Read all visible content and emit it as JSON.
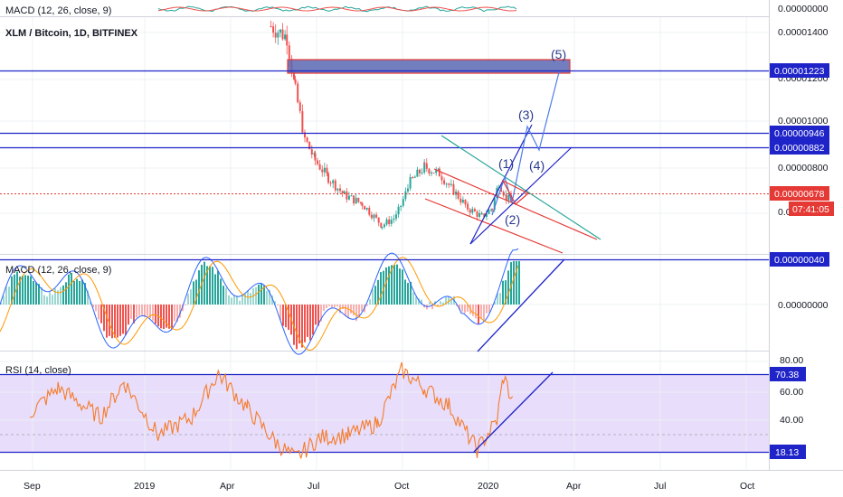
{
  "colors": {
    "blue_line": "#1f24c8",
    "red_line": "#e53935",
    "green_line": "#26a69a",
    "up_candle": "#26a69a",
    "down_candle": "#ef5350",
    "rsi_line": "#f57c2c",
    "rsi_band": "#e8ddfb",
    "zone_fill": "#5b67b3",
    "zone_border": "#e53935",
    "current_price": "#e53935",
    "timer_bg": "#e53935",
    "macd_line": "#2962ff",
    "signal_line": "#ff9800"
  },
  "top_indicator": {
    "label": "MACD (12, 26, close, 9)"
  },
  "main": {
    "symbol_label": "XLM / Bitcoin, 1D, BITFINEX",
    "axis_ticks": [
      "0.00001400",
      "0.00001200",
      "0.00001000",
      "0.00000800",
      "0.00000600"
    ],
    "top_axis_value": "0.00000000",
    "level_labels": [
      "0.00001223",
      "0.00000946",
      "0.00000882"
    ],
    "current_price_label": "0.00000678",
    "countdown": "07:41:05",
    "wave_labels": [
      "(1)",
      "(2)",
      "(3)",
      "(4)",
      "(5)"
    ]
  },
  "macd": {
    "label": "MACD (12, 26, close, 9)",
    "level_label": "0.00000040",
    "zero_label": "0.00000000"
  },
  "rsi": {
    "label": "RSI (14, close)",
    "axis_ticks": [
      "80.00",
      "60.00",
      "40.00"
    ],
    "upper_label": "70.38",
    "lower_label": "18.13"
  },
  "time_axis": [
    "Sep",
    "2019",
    "Apr",
    "Jul",
    "Oct",
    "2020",
    "Apr",
    "Jul",
    "Oct"
  ],
  "chart_data": [
    {
      "type": "candlestick",
      "title": "XLM / Bitcoin, 1D, BITFINEX",
      "ylim": [
        4.4e-06,
        1.55e-05
      ],
      "x_ticks": [
        "Sep",
        "2019",
        "Apr",
        "Jul",
        "Oct",
        "2020",
        "Apr",
        "Jul",
        "Oct"
      ],
      "horizontal_levels": [
        1.223e-05,
        9.46e-06,
        8.82e-06
      ],
      "current_price": 6.78e-06,
      "resistance_zone": [
        1.19e-05,
        1.25e-05
      ],
      "approx_close_path": [
        {
          "date": "2019-05-15",
          "value": 1.5e-05
        },
        {
          "date": "2019-06-01",
          "value": 1.45e-05
        },
        {
          "date": "2019-06-10",
          "value": 1.2e-05
        },
        {
          "date": "2019-06-20",
          "value": 9.8e-06
        },
        {
          "date": "2019-07-01",
          "value": 8.8e-06
        },
        {
          "date": "2019-07-15",
          "value": 8e-06
        },
        {
          "date": "2019-08-01",
          "value": 7.2e-06
        },
        {
          "date": "2019-08-20",
          "value": 6.8e-06
        },
        {
          "date": "2019-09-10",
          "value": 5.8e-06
        },
        {
          "date": "2019-09-25",
          "value": 6.2e-06
        },
        {
          "date": "2019-10-10",
          "value": 7.8e-06
        },
        {
          "date": "2019-10-25",
          "value": 8.5e-06
        },
        {
          "date": "2019-11-10",
          "value": 8.2e-06
        },
        {
          "date": "2019-11-25",
          "value": 7.4e-06
        },
        {
          "date": "2019-12-10",
          "value": 6.6e-06
        },
        {
          "date": "2019-12-25",
          "value": 6.2e-06
        },
        {
          "date": "2020-01-05",
          "value": 6.6e-06
        },
        {
          "date": "2020-01-12",
          "value": 7.8e-06
        },
        {
          "date": "2020-01-20",
          "value": 7.1e-06
        },
        {
          "date": "2020-01-27",
          "value": 6.8e-06
        }
      ]
    },
    {
      "type": "line",
      "title": "RSI (14, close)",
      "ylim": [
        5,
        85
      ],
      "levels": [
        70.38,
        18.13
      ],
      "approx_values": [
        {
          "date": "2018-09-01",
          "value": 45
        },
        {
          "date": "2018-10-01",
          "value": 62
        },
        {
          "date": "2018-11-15",
          "value": 42
        },
        {
          "date": "2018-12-10",
          "value": 66
        },
        {
          "date": "2019-01-15",
          "value": 30
        },
        {
          "date": "2019-02-20",
          "value": 42
        },
        {
          "date": "2019-03-20",
          "value": 72
        },
        {
          "date": "2019-04-20",
          "value": 48
        },
        {
          "date": "2019-05-20",
          "value": 25
        },
        {
          "date": "2019-06-10",
          "value": 14
        },
        {
          "date": "2019-07-05",
          "value": 28
        },
        {
          "date": "2019-08-05",
          "value": 30
        },
        {
          "date": "2019-09-05",
          "value": 38
        },
        {
          "date": "2019-10-01",
          "value": 74
        },
        {
          "date": "2019-10-25",
          "value": 62
        },
        {
          "date": "2019-11-20",
          "value": 50
        },
        {
          "date": "2019-12-20",
          "value": 20
        },
        {
          "date": "2020-01-10",
          "value": 40
        },
        {
          "date": "2020-01-17",
          "value": 70
        },
        {
          "date": "2020-01-27",
          "value": 52
        }
      ]
    }
  ]
}
